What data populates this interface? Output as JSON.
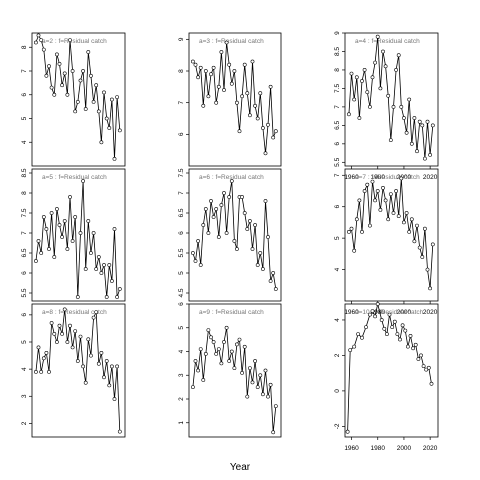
{
  "figure": {
    "xlabel": "Year"
  },
  "chart_data": [
    {
      "type": "line",
      "title": "a=2 : f=Residual catch",
      "xlim": [
        1960,
        2020
      ],
      "ylim": [
        3.0,
        8.6
      ],
      "yticks": [
        4,
        5,
        6,
        7,
        8
      ],
      "xticks": [],
      "x": [
        1958,
        1960,
        1962,
        1964,
        1966,
        1968,
        1970,
        1972,
        1974,
        1976,
        1978,
        1980,
        1982,
        1984,
        1986,
        1988,
        1990,
        1992,
        1994,
        1996,
        1998,
        2000,
        2002,
        2004,
        2006,
        2008,
        2010,
        2012,
        2014,
        2016,
        2018,
        2020,
        2022
      ],
      "values": [
        8.2,
        8.5,
        8.3,
        7.9,
        6.8,
        7.2,
        6.3,
        6.0,
        7.7,
        7.3,
        6.4,
        6.9,
        6.0,
        8.3,
        7.0,
        5.3,
        5.7,
        6.6,
        7.0,
        5.4,
        7.8,
        6.8,
        5.7,
        6.4,
        5.3,
        4.0,
        6.1,
        5.0,
        4.6,
        5.8,
        3.3,
        5.9,
        4.5
      ]
    },
    {
      "type": "line",
      "title": "a=5 : f=Residual catch",
      "xlim": [
        1960,
        2020
      ],
      "ylim": [
        5.3,
        8.6
      ],
      "yticks": [
        5.5,
        6.0,
        6.5,
        7.0,
        7.5,
        8.0,
        8.5
      ],
      "xticks": [],
      "x": [
        1958,
        1960,
        1962,
        1964,
        1966,
        1968,
        1970,
        1972,
        1974,
        1976,
        1978,
        1980,
        1982,
        1984,
        1986,
        1988,
        1990,
        1992,
        1994,
        1996,
        1998,
        2000,
        2002,
        2004,
        2006,
        2008,
        2010,
        2012,
        2014,
        2016,
        2018,
        2020,
        2022
      ],
      "values": [
        6.3,
        6.8,
        6.5,
        7.4,
        7.1,
        6.6,
        7.5,
        6.4,
        7.6,
        7.2,
        6.9,
        7.3,
        6.6,
        7.9,
        6.8,
        7.4,
        5.4,
        7.0,
        8.3,
        6.1,
        7.3,
        6.5,
        7.0,
        6.1,
        6.4,
        6.0,
        6.2,
        5.4,
        6.2,
        5.8,
        7.1,
        5.4,
        5.6
      ]
    },
    {
      "type": "line",
      "title": "a=8 : f=Residual catch",
      "xlim": [
        1960,
        2020
      ],
      "ylim": [
        1.5,
        6.4
      ],
      "yticks": [
        2,
        3,
        4,
        5,
        6
      ],
      "xticks": [],
      "x": [
        1958,
        1960,
        1962,
        1964,
        1966,
        1968,
        1970,
        1972,
        1974,
        1976,
        1978,
        1980,
        1982,
        1984,
        1986,
        1988,
        1990,
        1992,
        1994,
        1996,
        1998,
        2000,
        2002,
        2004,
        2006,
        2008,
        2010,
        2012,
        2014,
        2016,
        2018,
        2020,
        2022
      ],
      "values": [
        3.9,
        4.8,
        3.9,
        4.4,
        4.6,
        3.9,
        5.7,
        5.3,
        5.0,
        5.6,
        5.3,
        6.2,
        5.0,
        5.6,
        4.8,
        5.4,
        4.3,
        5.2,
        4.1,
        3.5,
        5.1,
        4.5,
        5.9,
        6.1,
        4.2,
        4.6,
        3.7,
        4.3,
        3.4,
        4.1,
        2.9,
        4.1,
        1.7
      ]
    },
    {
      "type": "line",
      "title": "a=3 : f=Residual catch",
      "xlim": [
        1960,
        2020
      ],
      "ylim": [
        5.0,
        9.2
      ],
      "yticks": [
        6,
        7,
        8,
        9
      ],
      "xticks": [],
      "x": [
        1958,
        1960,
        1962,
        1964,
        1966,
        1968,
        1970,
        1972,
        1974,
        1976,
        1978,
        1980,
        1982,
        1984,
        1986,
        1988,
        1990,
        1992,
        1994,
        1996,
        1998,
        2000,
        2002,
        2004,
        2006,
        2008,
        2010,
        2012,
        2014,
        2016,
        2018,
        2020,
        2022
      ],
      "values": [
        8.3,
        8.2,
        7.8,
        8.1,
        6.9,
        8.0,
        7.2,
        7.9,
        8.1,
        7.0,
        7.5,
        8.6,
        7.4,
        8.9,
        8.2,
        7.6,
        8.0,
        7.0,
        6.1,
        7.2,
        8.2,
        7.3,
        6.6,
        8.3,
        6.9,
        6.5,
        7.3,
        6.2,
        5.4,
        6.3,
        7.5,
        5.9,
        6.1
      ]
    },
    {
      "type": "line",
      "title": "a=6 : f=Residual catch",
      "xlim": [
        1960,
        2020
      ],
      "ylim": [
        4.3,
        7.6
      ],
      "yticks": [
        4.5,
        5.0,
        5.5,
        6.0,
        6.5,
        7.0,
        7.5
      ],
      "xticks": [],
      "x": [
        1958,
        1960,
        1962,
        1964,
        1966,
        1968,
        1970,
        1972,
        1974,
        1976,
        1978,
        1980,
        1982,
        1984,
        1986,
        1988,
        1990,
        1992,
        1994,
        1996,
        1998,
        2000,
        2002,
        2004,
        2006,
        2008,
        2010,
        2012,
        2014,
        2016,
        2018,
        2020,
        2022
      ],
      "values": [
        5.5,
        5.3,
        5.8,
        5.2,
        6.2,
        6.6,
        6.0,
        6.8,
        6.4,
        6.6,
        5.9,
        6.7,
        7.0,
        6.0,
        6.9,
        7.3,
        5.8,
        5.6,
        6.9,
        6.9,
        6.5,
        6.1,
        6.3,
        5.6,
        6.2,
        5.2,
        5.5,
        5.1,
        6.8,
        5.9,
        4.8,
        5.0,
        4.6
      ]
    },
    {
      "type": "line",
      "title": "a=9 : f=Residual catch",
      "xlim": [
        1960,
        2020
      ],
      "ylim": [
        0.4,
        6.0
      ],
      "yticks": [
        1,
        2,
        3,
        4,
        5,
        6
      ],
      "xticks": [],
      "x": [
        1958,
        1960,
        1962,
        1964,
        1966,
        1968,
        1970,
        1972,
        1974,
        1976,
        1978,
        1980,
        1982,
        1984,
        1986,
        1988,
        1990,
        1992,
        1994,
        1996,
        1998,
        2000,
        2002,
        2004,
        2006,
        2008,
        2010,
        2012,
        2014,
        2016,
        2018,
        2020,
        2022
      ],
      "values": [
        2.5,
        3.6,
        3.2,
        4.1,
        2.8,
        3.9,
        4.9,
        4.6,
        4.4,
        3.9,
        4.1,
        3.5,
        4.4,
        5.0,
        3.6,
        4.0,
        3.3,
        4.3,
        4.5,
        3.1,
        4.2,
        2.1,
        3.3,
        2.7,
        3.6,
        2.5,
        3.0,
        2.2,
        3.2,
        2.1,
        2.6,
        0.6,
        1.7
      ]
    },
    {
      "type": "line",
      "title": "a=4 : f=Residual catch",
      "xlim": [
        1960,
        2020
      ],
      "ylim": [
        5.4,
        9.0
      ],
      "yticks": [
        5.5,
        6.0,
        6.5,
        7.0,
        7.5,
        8.0,
        8.5,
        9.0
      ],
      "xticks": [
        1960,
        1980,
        2000,
        2020
      ],
      "x": [
        1958,
        1960,
        1962,
        1964,
        1966,
        1968,
        1970,
        1972,
        1974,
        1976,
        1978,
        1980,
        1982,
        1984,
        1986,
        1988,
        1990,
        1992,
        1994,
        1996,
        1998,
        2000,
        2002,
        2004,
        2006,
        2008,
        2010,
        2012,
        2014,
        2016,
        2018,
        2020,
        2022
      ],
      "values": [
        6.8,
        7.9,
        7.2,
        7.8,
        6.7,
        7.7,
        8.0,
        7.4,
        7.0,
        7.8,
        8.2,
        8.9,
        7.5,
        8.5,
        8.1,
        7.3,
        6.1,
        7.0,
        8.0,
        8.4,
        7.0,
        6.7,
        6.3,
        7.2,
        6.0,
        6.7,
        5.8,
        6.6,
        6.5,
        5.6,
        6.6,
        5.7,
        6.5
      ]
    },
    {
      "type": "line",
      "title": "a=7 : f=Residual catch",
      "xlim": [
        1960,
        2020
      ],
      "ylim": [
        3.0,
        7.2
      ],
      "yticks": [
        4,
        5,
        6,
        7
      ],
      "xticks": [
        1960,
        1980,
        2000,
        2020
      ],
      "x": [
        1958,
        1960,
        1962,
        1964,
        1966,
        1968,
        1970,
        1972,
        1974,
        1976,
        1978,
        1980,
        1982,
        1984,
        1986,
        1988,
        1990,
        1992,
        1994,
        1996,
        1998,
        2000,
        2002,
        2004,
        2006,
        2008,
        2010,
        2012,
        2014,
        2016,
        2018,
        2020,
        2022
      ],
      "values": [
        5.2,
        5.3,
        4.6,
        5.6,
        6.2,
        5.2,
        6.5,
        6.7,
        5.4,
        6.8,
        6.2,
        6.5,
        5.9,
        6.6,
        6.2,
        5.6,
        6.4,
        5.8,
        6.5,
        5.7,
        6.9,
        5.5,
        5.8,
        5.2,
        5.6,
        4.9,
        5.4,
        4.7,
        4.4,
        5.3,
        4.0,
        3.4,
        4.8
      ]
    },
    {
      "type": "line",
      "title": "a=10 : f=Residual catch",
      "xlim": [
        1960,
        2020
      ],
      "ylim": [
        -2.6,
        4.9
      ],
      "yticks": [
        -2,
        0,
        2,
        4
      ],
      "xticks": [
        1960,
        1980,
        2000,
        2020
      ],
      "x": [
        1957,
        1959,
        1962,
        1965,
        1968,
        1971,
        1974,
        1976,
        1978,
        1980,
        1983,
        1985,
        1987,
        1989,
        1991,
        1993,
        1995,
        1997,
        1999,
        2001,
        2003,
        2005,
        2007,
        2009,
        2011,
        2013,
        2015,
        2017,
        2019,
        2021
      ],
      "values": [
        -2.3,
        2.3,
        2.5,
        3.2,
        3.0,
        3.6,
        4.3,
        4.5,
        4.2,
        4.9,
        4.0,
        3.5,
        3.2,
        4.3,
        3.6,
        3.9,
        3.2,
        2.9,
        3.7,
        3.4,
        2.5,
        3.1,
        2.4,
        2.6,
        1.8,
        2.0,
        1.4,
        1.2,
        1.3,
        0.4
      ]
    }
  ]
}
